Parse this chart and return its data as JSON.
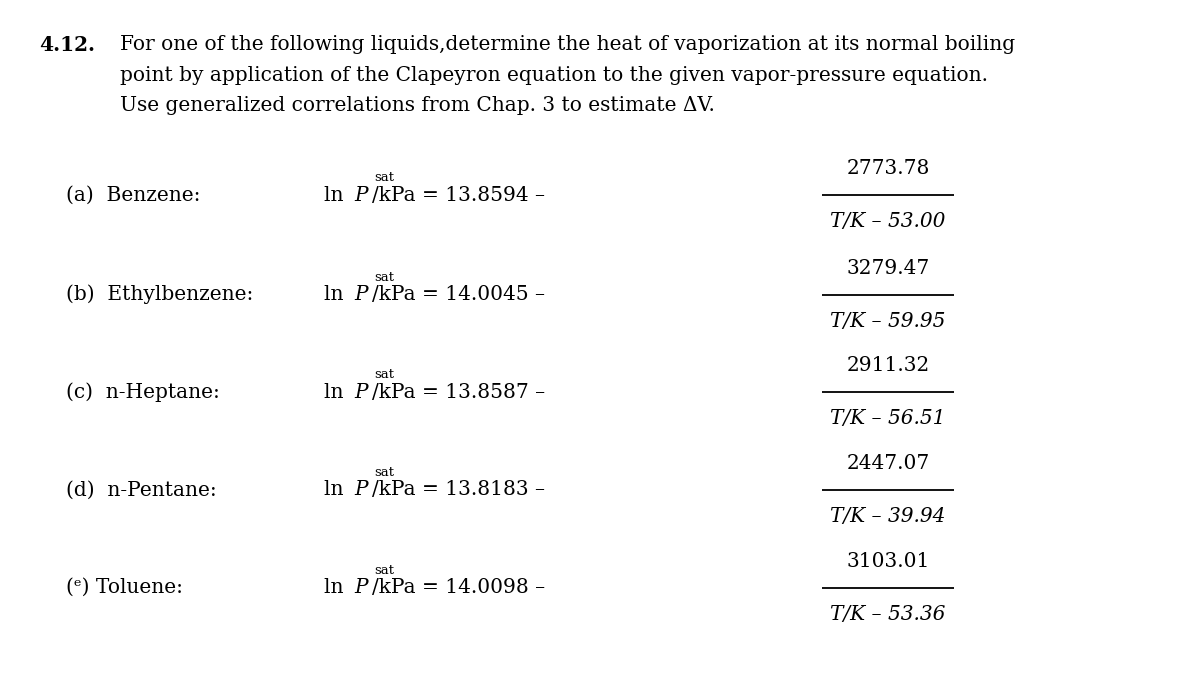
{
  "background_color": "#ffffff",
  "fig_width": 12.0,
  "fig_height": 6.98,
  "problem_number": "4.12.",
  "problem_text_line1": "For one of the following liquids,determine the heat of vaporization at its normal boiling",
  "problem_text_line2": "point by application of the Clapeyron equation to the given vapor-pressure equation.",
  "problem_text_line3": "Use generalized correlations from Chap. 3 to estimate ΔV.",
  "entries": [
    {
      "label": "(a)  Benzene:",
      "italic_label": false,
      "const": "13.8594",
      "numerator": "2773.78",
      "denominator": "T/K – 53.00"
    },
    {
      "label": "(b)  Ethylbenzene:",
      "italic_label": false,
      "const": "14.0045",
      "numerator": "3279.47",
      "denominator": "T/K – 59.95"
    },
    {
      "label": "(c)  n-Heptane:",
      "italic_label": false,
      "const": "13.8587",
      "numerator": "2911.32",
      "denominator": "T/K – 56.51"
    },
    {
      "label": "(d)  n-Pentane:",
      "italic_label": false,
      "const": "13.8183",
      "numerator": "2447.07",
      "denominator": "T/K – 39.94"
    },
    {
      "label": "(e) Toluene:",
      "italic_label": true,
      "const": "14.0098",
      "numerator": "3103.01",
      "denominator": "T/K – 53.36"
    }
  ]
}
